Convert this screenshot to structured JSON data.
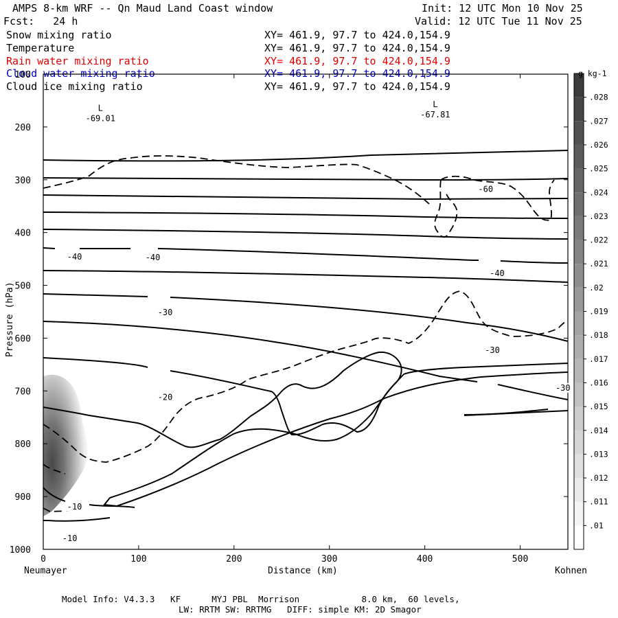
{
  "header": {
    "title": "AMPS 8-km WRF -- Qn Maud Land Coast window",
    "init": "Init: 12 UTC Mon 10 Nov 25",
    "fcst": "Fcst:   24 h",
    "valid": "Valid: 12 UTC Tue 11 Nov 25"
  },
  "fields": [
    {
      "name": "Snow mixing ratio",
      "xy": "XY= 461.9, 97.7 to 424.0,154.9",
      "color": "#000000"
    },
    {
      "name": "Temperature",
      "xy": "XY= 461.9, 97.7 to 424.0,154.9",
      "color": "#000000"
    },
    {
      "name": "Rain water mixing ratio",
      "xy": "XY= 461.9, 97.7 to 424.0,154.9",
      "color": "#e00000"
    },
    {
      "name": "Cloud water mixing ratio",
      "xy": "XY= 461.9, 97.7 to 424.0,154.9",
      "color": "#0000c0"
    },
    {
      "name": "Cloud ice mixing ratio",
      "xy": "XY= 461.9, 97.7 to 424.0,154.9",
      "color": "#000000"
    }
  ],
  "chart_data": {
    "type": "cross-section",
    "xlabel": "Distance (km)",
    "ylabel": "Pressure (hPa)",
    "xlim": [
      0,
      550
    ],
    "ylim": [
      1000,
      100
    ],
    "x_ticks": [
      0,
      100,
      200,
      300,
      400,
      500
    ],
    "y_ticks": [
      100,
      200,
      300,
      400,
      500,
      600,
      700,
      800,
      900,
      1000
    ],
    "left_endpoint": "Neumayer",
    "right_endpoint": "Kohnen",
    "lows": [
      {
        "symbol": "L",
        "value": "-69.01",
        "x_km": 47,
        "p_hpa": 207
      },
      {
        "symbol": "L",
        "value": "-67.81",
        "x_km": 398,
        "p_hpa": 200
      }
    ],
    "temperature_labels": [
      {
        "text": "-60",
        "x_km": 456,
        "p_hpa": 322
      },
      {
        "text": "-40",
        "x_km": 25,
        "p_hpa": 450
      },
      {
        "text": "-40",
        "x_km": 107,
        "p_hpa": 451
      },
      {
        "text": "-40",
        "x_km": 468,
        "p_hpa": 481
      },
      {
        "text": "-30",
        "x_km": 120,
        "p_hpa": 555
      },
      {
        "text": "-30",
        "x_km": 463,
        "p_hpa": 627
      },
      {
        "text": "-30",
        "x_km": 537,
        "p_hpa": 698
      },
      {
        "text": "-20",
        "x_km": 120,
        "p_hpa": 716
      },
      {
        "text": "-10",
        "x_km": 25,
        "p_hpa": 923
      },
      {
        "text": "-10",
        "x_km": 20,
        "p_hpa": 983
      }
    ],
    "temperature_isotherms_c": [
      -60,
      -50,
      -40,
      -30,
      -20,
      -10
    ],
    "dashed_contours": "cloud ice mixing ratio",
    "colorbar": {
      "unit": "g kg-1",
      "levels": [
        ".01",
        ".011",
        ".012",
        ".013",
        ".014",
        ".015",
        ".016",
        ".017",
        ".018",
        ".019",
        ".02",
        ".021",
        ".022",
        ".023",
        ".024",
        ".025",
        ".026",
        ".027",
        ".028"
      ],
      "shaded_field": "Snow mixing ratio"
    }
  },
  "footer": {
    "line1": "Model Info: V4.3.3   KF      MYJ PBL  Morrison            8.0 km,  60 levels,",
    "line2": "LW: RRTM SW: RRTMG   DIFF: simple KM: 2D Smagor"
  }
}
